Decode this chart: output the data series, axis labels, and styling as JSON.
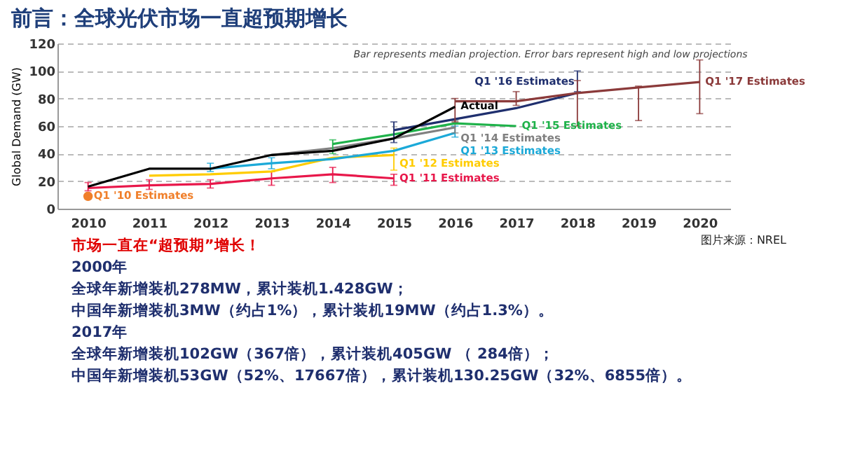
{
  "chart_data": {
    "type": "line",
    "title": "前言：全球光伏市场一直超预期增长",
    "ylabel": "Global Demand (GW)",
    "xlim": [
      2009.5,
      2020.5
    ],
    "xticks": [
      2010,
      2011,
      2012,
      2013,
      2014,
      2015,
      2016,
      2017,
      2018,
      2019,
      2020
    ],
    "ylim": [
      0,
      120
    ],
    "yticks": [
      0,
      20,
      40,
      60,
      80,
      100,
      120
    ],
    "grid": "y",
    "line_style": "solid",
    "series": [
      {
        "name": "Q1 '10 Estimates",
        "type": "scatter",
        "marker": "circle",
        "color": "#f07f2a",
        "x": [
          2010
        ],
        "values": [
          9
        ],
        "errors": [
          [
            7,
            10
          ]
        ]
      },
      {
        "name": "Q1 '11 Estimates",
        "color": "#e8174a",
        "x": [
          2010,
          2011,
          2012,
          2013,
          2014,
          2015
        ],
        "values": [
          15,
          17,
          18,
          22,
          25,
          22
        ],
        "errors": [
          [
            13,
            19
          ],
          [
            14,
            21
          ],
          [
            15,
            21
          ],
          [
            17,
            27
          ],
          [
            19,
            30
          ],
          [
            17,
            25
          ]
        ]
      },
      {
        "name": "Q1 '12 Estimates",
        "color": "#ffcc00",
        "x": [
          2011,
          2012,
          2013,
          2014,
          2015
        ],
        "values": [
          24,
          25,
          27,
          37,
          39
        ],
        "errors": [
          null,
          null,
          null,
          null,
          [
            28,
            44
          ]
        ]
      },
      {
        "name": "Q1 '13 Estimates",
        "color": "#1ba9d8",
        "x": [
          2012,
          2013,
          2014,
          2015,
          2016
        ],
        "values": [
          29,
          33,
          36,
          42,
          55
        ],
        "errors": [
          [
            27,
            33
          ],
          [
            29,
            37
          ],
          null,
          null,
          [
            52,
            60
          ]
        ]
      },
      {
        "name": "Q1 '14 Estimates",
        "color": "#808080",
        "x": [
          2013,
          2014,
          2015,
          2016
        ],
        "values": [
          39,
          44,
          51,
          59
        ],
        "errors": [
          null,
          null,
          null,
          [
            55,
            64
          ]
        ]
      },
      {
        "name": "Q1 '15 Estimates",
        "color": "#1fb24a",
        "x": [
          2014,
          2015,
          2016,
          2017
        ],
        "values": [
          47,
          54,
          62,
          60
        ],
        "errors": [
          [
            40,
            50
          ],
          null,
          null,
          null
        ]
      },
      {
        "name": "Q1 '16 Estimates",
        "color": "#1f2f6e",
        "x": [
          2015,
          2016,
          2017,
          2018
        ],
        "values": [
          57,
          65,
          73,
          84
        ],
        "errors": [
          [
            48,
            63
          ],
          null,
          null,
          [
            85,
            100
          ]
        ]
      },
      {
        "name": "Q1 '17 Estimates",
        "color": "#8b3a3a",
        "x": [
          2016,
          2017,
          2018,
          2019,
          2020
        ],
        "values": [
          78,
          78,
          84,
          88,
          92
        ],
        "errors": [
          [
            63,
            80
          ],
          [
            75,
            85
          ],
          [
            60,
            93
          ],
          [
            64,
            89
          ],
          [
            69,
            108
          ]
        ]
      },
      {
        "name": "Actual",
        "color": "#000000",
        "x": [
          2010,
          2011,
          2012,
          2013,
          2014,
          2015,
          2016
        ],
        "values": [
          16,
          29,
          29,
          39,
          42,
          51,
          74
        ]
      }
    ],
    "annotations": [
      "Bar represents median projection. Error bars represent high and low projections",
      "图片来源：NREL",
      "市场一直在“超预期”增长！",
      "2000年",
      "全球年新增装机278MW，累计装机1.428GW；",
      "中国年新增装机3MW（约占1%），累计装机19MW（约占1.3%）。",
      "2017年",
      "全球年新增装机102GW（367倍），累计装机405GW （ 284倍）；",
      "中国年新增装机53GW（52%、17667倍），累计装机130.25GW（32%、6855倍）。"
    ]
  }
}
